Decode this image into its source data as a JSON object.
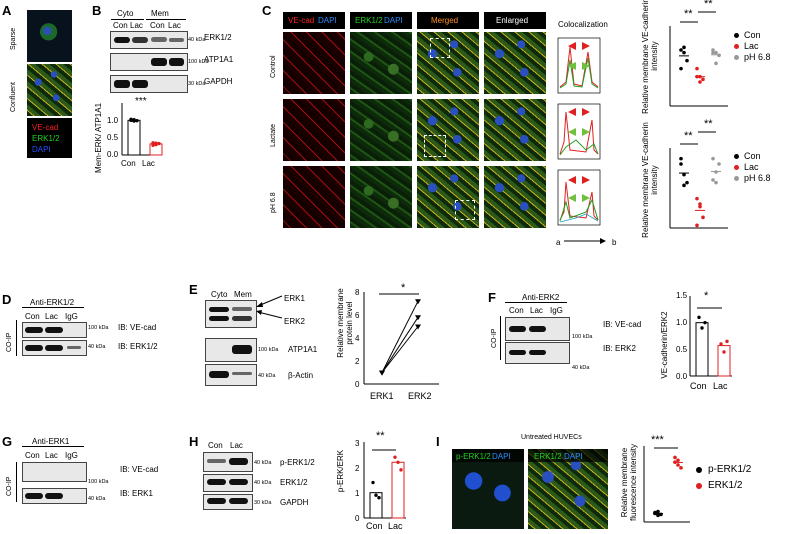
{
  "panels": {
    "A": {
      "label": "A",
      "rows": [
        "Sparse",
        "Confluent"
      ],
      "legend": [
        "VE-cad",
        "ERK1/2",
        "DAPI"
      ],
      "legend_colors": [
        "#ff2020",
        "#20d020",
        "#2050ff"
      ]
    },
    "B": {
      "label": "B",
      "groups": [
        "Cyto",
        "Mem"
      ],
      "lanes": [
        "Con",
        "Lac",
        "Con",
        "Lac"
      ],
      "bands": [
        {
          "name": "ERK1/2",
          "kda": "40 kDa"
        },
        {
          "name": "ATP1A1",
          "kda": "100 kDa"
        },
        {
          "name": "GAPDH",
          "kda": "30 kDa"
        }
      ],
      "sig": "***"
    },
    "C": {
      "label": "C",
      "headers": [
        "VE-cad DAPI",
        "ERK1/2 DAPI",
        "Merged",
        "Enlarged"
      ],
      "header_parts": {
        "red": "VE-cad",
        "blue1": " DAPI",
        "green": "ERK1/2",
        "blue2": " DAPI"
      },
      "rows": [
        "Control",
        "Lactate",
        "pH 6.8"
      ],
      "coloc": "Colocalization",
      "axis": [
        "a",
        "b"
      ],
      "sig": [
        "**",
        "**",
        "**",
        "**"
      ]
    },
    "D": {
      "label": "D",
      "ab": "Anti-ERK1/2",
      "lanes": [
        "Con",
        "Lac",
        "IgG"
      ],
      "coip": "CO-IP",
      "bands": [
        {
          "kda": "100 kDa",
          "ib": "IB: VE-cad"
        },
        {
          "kda": "40 kDa",
          "ib": "IB: ERK1/2"
        }
      ]
    },
    "E": {
      "label": "E",
      "groups": [
        "Cyto",
        "Mem"
      ],
      "arrows": [
        "ERK1",
        "ERK2"
      ],
      "bands": [
        {
          "kda": "100 kDa",
          "name": "ATP1A1"
        },
        {
          "kda": "40 kDa",
          "name": "β-Actin"
        }
      ],
      "sig": "*"
    },
    "F": {
      "label": "F",
      "ab": "Anti-ERK2",
      "lanes": [
        "Con",
        "Lac",
        "IgG"
      ],
      "coip": "CO-IP",
      "bands": [
        {
          "kda": "100 kDa",
          "ib": "IB: VE-cad"
        },
        {
          "kda": "40 kDa",
          "ib": "IB: ERK2"
        }
      ],
      "sig": "*"
    },
    "G": {
      "label": "G",
      "ab": "Anti-ERK1",
      "lanes": [
        "Con",
        "Lac",
        "IgG"
      ],
      "coip": "CO-IP",
      "bands": [
        {
          "kda": "100 kDa",
          "ib": "IB: VE-cad"
        },
        {
          "kda": "40 kDa",
          "ib": "IB: ERK1"
        }
      ]
    },
    "H": {
      "label": "H",
      "lanes": [
        "Con",
        "Lac"
      ],
      "bands": [
        {
          "kda": "40 kDa",
          "name": "p-ERK1/2"
        },
        {
          "kda": "40 kDa",
          "name": "ERK1/2"
        },
        {
          "kda": "30 kDa",
          "name": "GAPDH"
        }
      ],
      "sig": "**"
    },
    "I": {
      "label": "I",
      "title": "Untreated HUVECs",
      "headers": [
        "p-ERK1/2 DAPI",
        "ERK1/2 DAPI"
      ],
      "header_parts": {
        "g1": "p-ERK1/2",
        "b1": " DAPI",
        "g2": "ERK1/2",
        "b2": " DAPI"
      },
      "sig": "***"
    }
  },
  "chart_data": [
    {
      "panel": "B",
      "type": "bar",
      "categories": [
        "Con",
        "Lac"
      ],
      "values": [
        1.0,
        0.32
      ],
      "points": [
        [
          1.0,
          1.02,
          0.99,
          1.03,
          0.98
        ],
        [
          0.35,
          0.3,
          0.33,
          0.28,
          0.34
        ]
      ],
      "ylabel": "Mem-ERK/ ATP1A1",
      "yticks": [
        "0.0",
        "0.5",
        "1.0"
      ],
      "ylim": [
        0,
        1.5
      ],
      "colors": [
        "#000000",
        "#e02020"
      ]
    },
    {
      "panel": "C-top",
      "type": "scatter",
      "categories": [
        "Con",
        "Lac",
        "pH 6.8"
      ],
      "points": [
        [
          1.05,
          1.1,
          0.85,
          0.7,
          1.0
        ],
        [
          0.55,
          0.45,
          0.5,
          0.7,
          0.55
        ],
        [
          1.0,
          0.8,
          0.95,
          1.05,
          1.0
        ]
      ],
      "ylabel": "Relative membrane VE-cadherin intensity",
      "legend": [
        "Con",
        "Lac",
        "pH 6.8"
      ],
      "colors": [
        "#000000",
        "#e02020",
        "#999999"
      ]
    },
    {
      "panel": "C-bottom",
      "type": "scatter",
      "categories": [
        "Con",
        "Lac",
        "pH 6.8"
      ],
      "points": [
        [
          1.3,
          1.0,
          0.85,
          1.2,
          0.8
        ],
        [
          0.55,
          0.4,
          0.2,
          0.05,
          0.45
        ],
        [
          0.9,
          0.85,
          1.2,
          1.3,
          1.05
        ]
      ],
      "ylabel": "Relative membrane VE-cadherin intensity",
      "legend": [
        "Con",
        "Lac",
        "pH 6.8"
      ],
      "colors": [
        "#000000",
        "#e02020",
        "#999999"
      ]
    },
    {
      "panel": "E",
      "type": "line",
      "categories": [
        "ERK1",
        "ERK2"
      ],
      "series": [
        {
          "values": [
            1.0,
            7.2
          ]
        },
        {
          "values": [
            1.0,
            5.8
          ]
        },
        {
          "values": [
            1.0,
            5.0
          ]
        }
      ],
      "ylabel": "Relative membrane protein level",
      "yticks": [
        "0",
        "2",
        "4",
        "6",
        "8"
      ],
      "ylim": [
        0,
        8
      ]
    },
    {
      "panel": "F",
      "type": "bar",
      "categories": [
        "Con",
        "Lac"
      ],
      "values": [
        1.0,
        0.57
      ],
      "points": [
        [
          1.1,
          0.9,
          1.0
        ],
        [
          0.6,
          0.45,
          0.65
        ]
      ],
      "ylabel": "VE-cadherin/ERK2",
      "yticks": [
        "0.0",
        "0.5",
        "1.0",
        "1.5"
      ],
      "ylim": [
        0,
        1.5
      ],
      "colors": [
        "#000000",
        "#e02020"
      ]
    },
    {
      "panel": "H",
      "type": "bar",
      "categories": [
        "Con",
        "Lac"
      ],
      "values": [
        1.0,
        2.2
      ],
      "points": [
        [
          1.4,
          0.9,
          0.8
        ],
        [
          2.4,
          2.2,
          1.9
        ]
      ],
      "ylabel": "p-ERK/ERK",
      "yticks": [
        "0",
        "1",
        "2",
        "3"
      ],
      "ylim": [
        0,
        3
      ],
      "colors": [
        "#000000",
        "#e02020"
      ]
    },
    {
      "panel": "I",
      "type": "scatter",
      "categories": [
        "p-ERK1/2",
        "ERK1/2"
      ],
      "points": [
        [
          1.0,
          0.7,
          0.8,
          0.9,
          1.1
        ],
        [
          6.8,
          6.0,
          5.7,
          6.3,
          6.5
        ]
      ],
      "ylabel": "Relative membrane fluorescence intensity",
      "ylim": [
        0,
        8
      ],
      "legend": [
        "p-ERK1/2",
        "ERK1/2"
      ],
      "colors": [
        "#000000",
        "#e02020"
      ]
    }
  ]
}
